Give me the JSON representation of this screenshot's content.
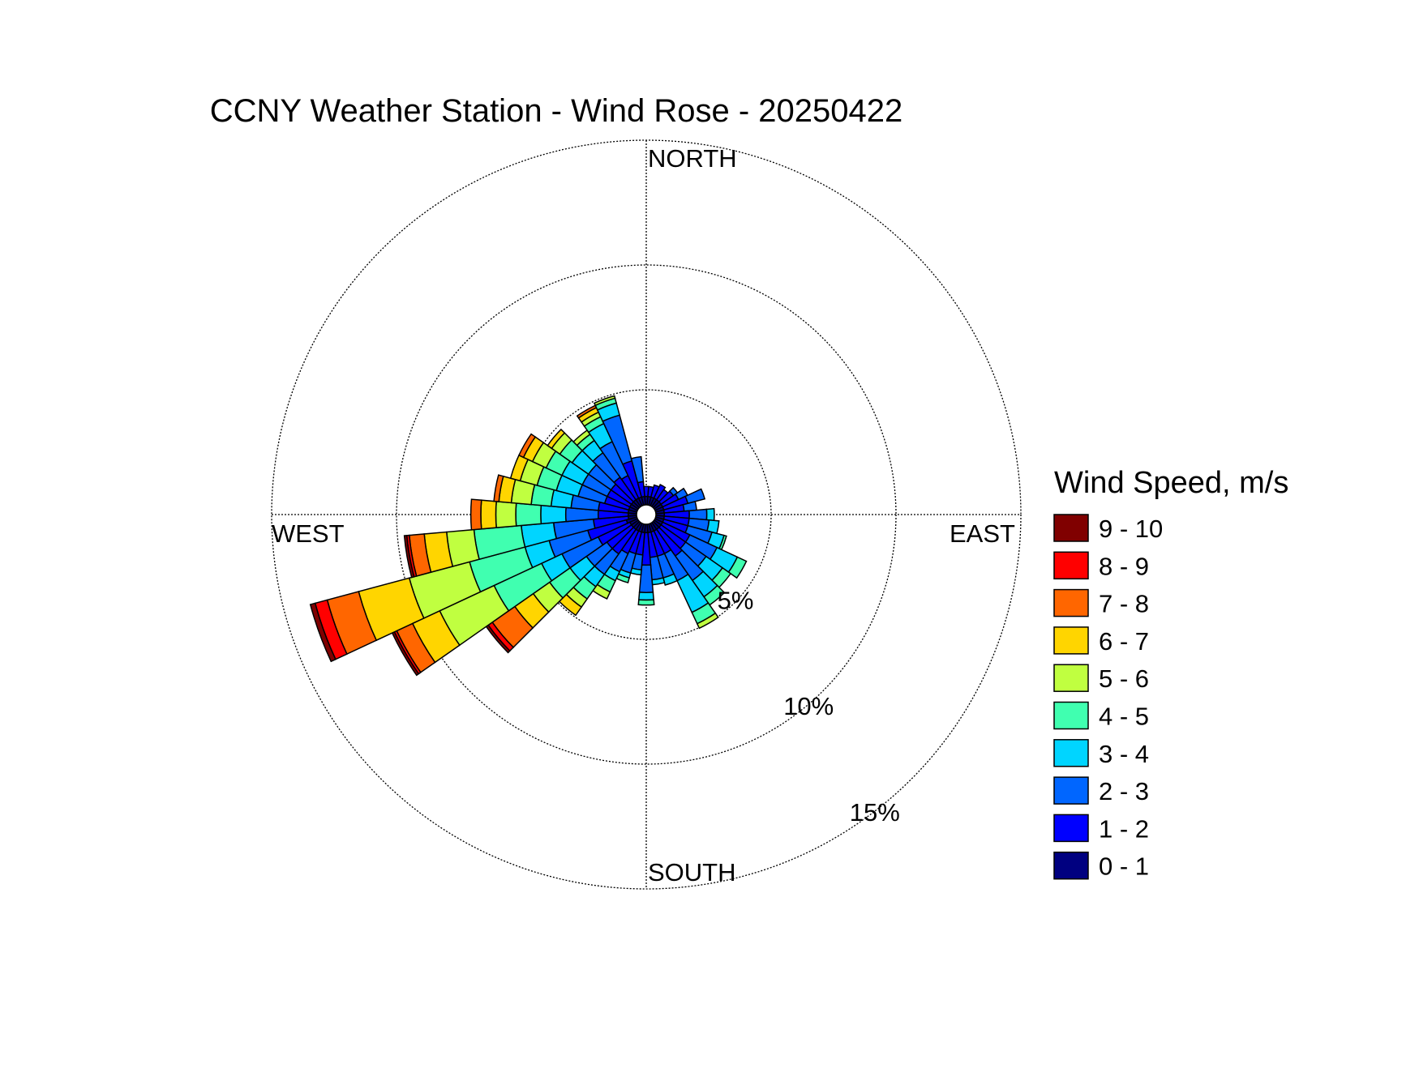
{
  "chart_data": {
    "type": "wind-rose",
    "title": "CCNY Weather Station - Wind Rose - 20250422",
    "direction_labels": {
      "north": "NORTH",
      "south": "SOUTH",
      "east": "EAST",
      "west": "WEST"
    },
    "radial_unit": "%",
    "radial_max": 15,
    "radial_ticks": [
      {
        "value": 5,
        "label": "5%"
      },
      {
        "value": 10,
        "label": "10%"
      },
      {
        "value": 15,
        "label": "15%"
      }
    ],
    "grid": true,
    "legend": {
      "title": "Wind Speed, m/s",
      "placement": "right",
      "bins": [
        {
          "label": "9 - 10",
          "color": "#800000"
        },
        {
          "label": "8 - 9",
          "color": "#ff0000"
        },
        {
          "label": "7 - 8",
          "color": "#ff6600"
        },
        {
          "label": "6 - 7",
          "color": "#ffd500"
        },
        {
          "label": "5 - 6",
          "color": "#c0ff40"
        },
        {
          "label": "4 - 5",
          "color": "#40ffb0"
        },
        {
          "label": "3 - 4",
          "color": "#00d5ff"
        },
        {
          "label": "2 - 3",
          "color": "#0066ff"
        },
        {
          "label": "1 - 2",
          "color": "#0000ff"
        },
        {
          "label": "0 - 1",
          "color": "#000080"
        }
      ]
    },
    "bin_order": [
      "0 - 1",
      "1 - 2",
      "2 - 3",
      "3 - 4",
      "4 - 5",
      "5 - 6",
      "6 - 7",
      "7 - 8",
      "8 - 9",
      "9 - 10"
    ],
    "sector_width_deg": 10,
    "sectors": [
      {
        "direction_deg": 0,
        "values": [
          0.4,
          0.4
        ]
      },
      {
        "direction_deg": 10,
        "values": [
          0.4,
          0.4
        ]
      },
      {
        "direction_deg": 20,
        "values": [
          0.4,
          0.5
        ]
      },
      {
        "direction_deg": 30,
        "values": [
          0.4,
          0.6
        ]
      },
      {
        "direction_deg": 40,
        "values": [
          0.4,
          0.5
        ]
      },
      {
        "direction_deg": 50,
        "values": [
          0.4,
          0.6,
          0.2
        ]
      },
      {
        "direction_deg": 60,
        "values": [
          0.4,
          0.7,
          0.4
        ]
      },
      {
        "direction_deg": 70,
        "values": [
          0.4,
          1.0,
          0.7
        ]
      },
      {
        "direction_deg": 80,
        "values": [
          0.4,
          0.8,
          0.5
        ]
      },
      {
        "direction_deg": 90,
        "values": [
          0.4,
          1.0,
          0.7,
          0.3
        ]
      },
      {
        "direction_deg": 100,
        "values": [
          0.4,
          1.0,
          0.8,
          0.4
        ]
      },
      {
        "direction_deg": 110,
        "values": [
          0.4,
          1.0,
          1.0,
          0.5,
          0.1
        ]
      },
      {
        "direction_deg": 120,
        "values": [
          0.4,
          1.2,
          1.2,
          0.9,
          0.4
        ]
      },
      {
        "direction_deg": 130,
        "values": [
          0.4,
          1.2,
          1.0,
          0.8,
          0.4
        ]
      },
      {
        "direction_deg": 140,
        "values": [
          0.4,
          1.3,
          1.2,
          0.8,
          0.4
        ]
      },
      {
        "direction_deg": 150,
        "values": [
          0.4,
          1.0,
          1.2,
          1.4,
          0.5,
          0.2
        ]
      },
      {
        "direction_deg": 160,
        "values": [
          0.4,
          1.0,
          0.9,
          0.3
        ]
      },
      {
        "direction_deg": 170,
        "values": [
          0.4,
          1.0,
          0.9,
          0.2
        ]
      },
      {
        "direction_deg": 180,
        "values": [
          0.4,
          1.3,
          1.1,
          0.3,
          0.2
        ]
      },
      {
        "direction_deg": 190,
        "values": [
          0.4,
          0.9,
          0.6,
          0.2
        ]
      },
      {
        "direction_deg": 200,
        "values": [
          0.4,
          0.9,
          0.8,
          0.2,
          0.2
        ]
      },
      {
        "direction_deg": 210,
        "values": [
          0.4,
          1.0,
          0.8,
          0.4,
          0.5,
          0.3
        ]
      },
      {
        "direction_deg": 220,
        "values": [
          0.4,
          1.2,
          1.0,
          0.6,
          0.6,
          0.4,
          0.4
        ]
      },
      {
        "direction_deg": 230,
        "values": [
          0.4,
          1.2,
          1.0,
          0.8,
          1.0,
          0.8,
          0.9,
          1.1,
          0.2,
          0.1
        ]
      },
      {
        "direction_deg": 240,
        "values": [
          0.4,
          1.4,
          1.6,
          0.9,
          2.1,
          2.4,
          1.2,
          0.7,
          0.1,
          0.1
        ]
      },
      {
        "direction_deg": 250,
        "values": [
          0.5,
          1.6,
          1.6,
          1.0,
          2.3,
          2.5,
          2.1,
          1.3,
          0.5,
          0.2
        ]
      },
      {
        "direction_deg": 260,
        "values": [
          0.4,
          1.4,
          1.6,
          1.3,
          1.9,
          1.1,
          0.9,
          0.6,
          0.1,
          0.1
        ]
      },
      {
        "direction_deg": 270,
        "values": [
          0.4,
          1.2,
          1.3,
          1.0,
          1.0,
          0.8,
          0.6,
          0.4
        ]
      },
      {
        "direction_deg": 280,
        "values": [
          0.4,
          1.2,
          1.1,
          0.8,
          0.8,
          0.8,
          0.5,
          0.2
        ]
      },
      {
        "direction_deg": 290,
        "values": [
          0.4,
          1.0,
          1.1,
          0.9,
          0.8,
          0.7,
          0.4
        ]
      },
      {
        "direction_deg": 300,
        "values": [
          0.4,
          1.0,
          1.1,
          0.9,
          0.7,
          0.6,
          0.4,
          0.2
        ]
      },
      {
        "direction_deg": 310,
        "values": [
          0.4,
          1.0,
          1.1,
          0.8,
          0.6,
          0.4,
          0.2
        ]
      },
      {
        "direction_deg": 320,
        "values": [
          0.4,
          1.1,
          1.2,
          0.6,
          0.3,
          0.2
        ]
      },
      {
        "direction_deg": 330,
        "values": [
          0.4,
          1.0,
          1.5,
          0.8,
          0.3,
          0.2,
          0.2,
          0.1
        ]
      },
      {
        "direction_deg": 340,
        "values": [
          0.4,
          1.5,
          1.9,
          0.5,
          0.2,
          0.1
        ]
      },
      {
        "direction_deg": 350,
        "values": [
          0.4,
          0.6,
          1.0
        ]
      }
    ]
  }
}
